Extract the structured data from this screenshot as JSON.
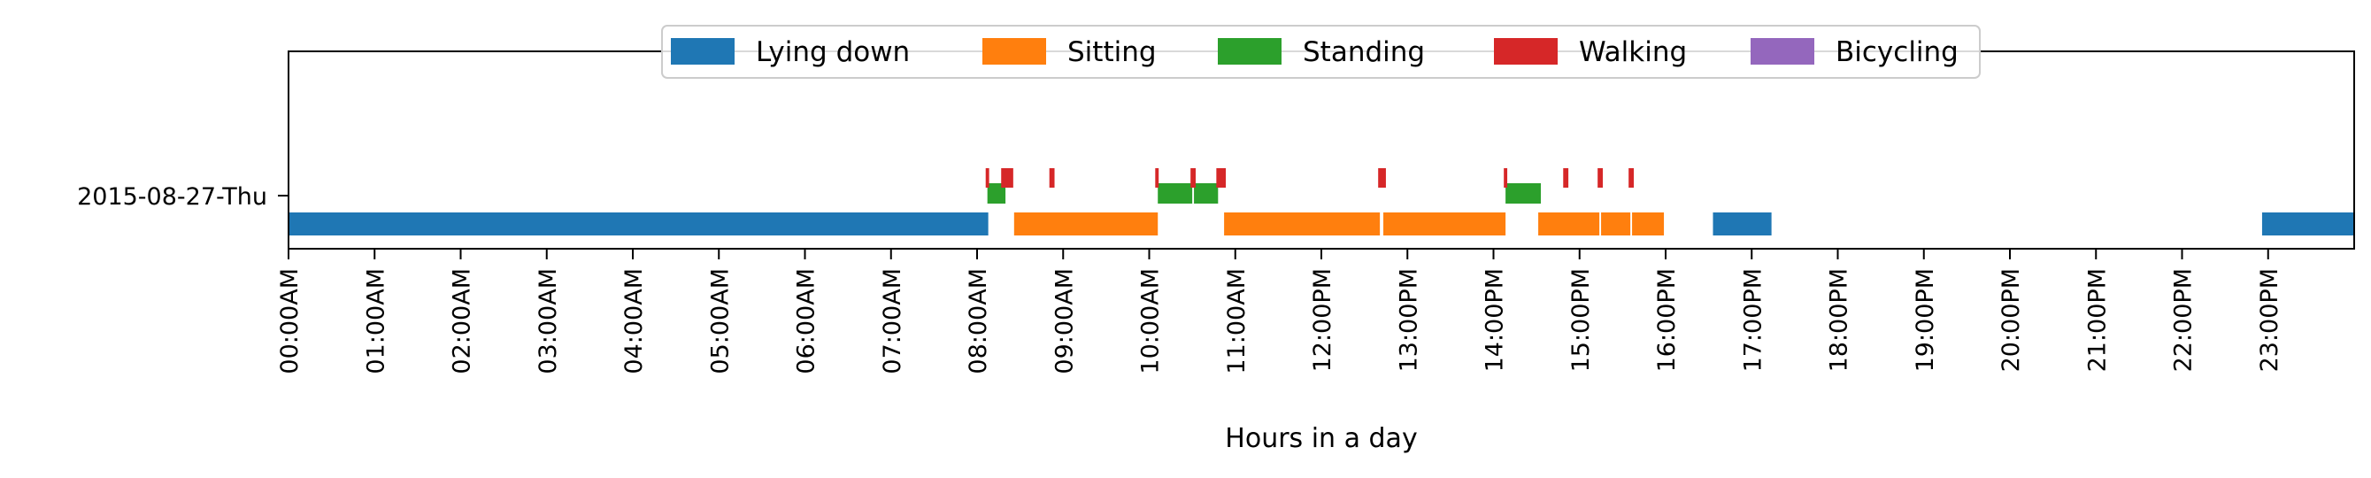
{
  "chart_data": {
    "type": "timeline",
    "xlabel": "Hours in a day",
    "xlim": [
      0,
      24
    ],
    "x_ticks": [
      "00:00AM",
      "01:00AM",
      "02:00AM",
      "03:00AM",
      "04:00AM",
      "05:00AM",
      "06:00AM",
      "07:00AM",
      "08:00AM",
      "09:00AM",
      "10:00AM",
      "11:00AM",
      "12:00PM",
      "13:00PM",
      "14:00PM",
      "15:00PM",
      "16:00PM",
      "17:00PM",
      "18:00PM",
      "19:00PM",
      "20:00PM",
      "21:00PM",
      "22:00PM",
      "23:00PM"
    ],
    "rows": [
      "2015-08-27-Thu"
    ],
    "legend_position": "top-center",
    "series": [
      {
        "name": "Lying down",
        "color": "#1f77b4",
        "level": 0,
        "intervals": [
          [
            0.0,
            8.13
          ],
          [
            16.55,
            17.23
          ],
          [
            22.93,
            24.0
          ]
        ]
      },
      {
        "name": "Sitting",
        "color": "#ff7f0e",
        "level": 0,
        "intervals": [
          [
            8.43,
            10.1
          ],
          [
            10.87,
            12.68
          ],
          [
            12.72,
            14.14
          ],
          [
            14.52,
            15.23
          ],
          [
            15.25,
            15.59
          ],
          [
            15.61,
            15.98
          ]
        ]
      },
      {
        "name": "Standing",
        "color": "#2ca02c",
        "level": 1,
        "intervals": [
          [
            8.12,
            8.33
          ],
          [
            10.1,
            10.5
          ],
          [
            10.52,
            10.8
          ],
          [
            14.14,
            14.55
          ]
        ]
      },
      {
        "name": "Walking",
        "color": "#d62728",
        "level": 2,
        "intervals": [
          [
            8.1,
            8.14
          ],
          [
            8.28,
            8.42
          ],
          [
            8.84,
            8.9
          ],
          [
            10.07,
            10.11
          ],
          [
            10.48,
            10.54
          ],
          [
            10.78,
            10.89
          ],
          [
            12.66,
            12.75
          ],
          [
            14.12,
            14.16
          ],
          [
            14.81,
            14.87
          ],
          [
            15.21,
            15.27
          ],
          [
            15.57,
            15.63
          ]
        ]
      },
      {
        "name": "Bicycling",
        "color": "#9467bd",
        "level": 3,
        "intervals": []
      }
    ]
  }
}
